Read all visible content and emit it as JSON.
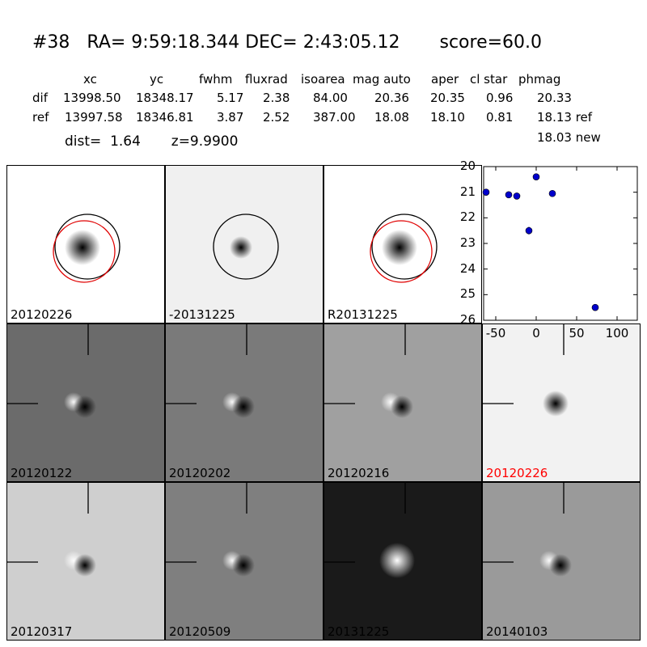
{
  "header": {
    "id": "#38",
    "ra": "RA= 9:59:18.344",
    "dec": "DEC= 2:43:05.12",
    "score": "score=60.0"
  },
  "table": {
    "columns": [
      "xc",
      "yc",
      "fwhm",
      "fluxrad",
      "isoarea",
      "mag auto",
      "aper",
      "cl star",
      "phmag"
    ],
    "dif": [
      "dif",
      "13998.50",
      "18348.17",
      "5.17",
      "2.38",
      "84.00",
      "20.36",
      "20.35",
      "0.96",
      "20.33"
    ],
    "ref": [
      "ref",
      "13997.58",
      "18346.81",
      "3.87",
      "2.52",
      "387.00",
      "18.08",
      "18.10",
      "0.81",
      "18.13 ref"
    ],
    "new_line": "18.03 new"
  },
  "dist_line": "dist=  1.64       z=9.9900",
  "stamps": [
    {
      "label": "20120226",
      "bg": "#ffffff",
      "core": "#000000",
      "red_circle": true
    },
    {
      "label": "-20131225",
      "bg": "#f0f0f0",
      "core": "#000000",
      "red_circle": false
    },
    {
      "label": "R20131225",
      "bg": "#ffffff",
      "core": "#000000",
      "red_circle": true
    }
  ],
  "cutouts": [
    {
      "label": "20120122",
      "bg": "#6b6b6b",
      "red": false
    },
    {
      "label": "20120202",
      "bg": "#7a7a7a",
      "red": false
    },
    {
      "label": "20120216",
      "bg": "#a0a0a0",
      "red": false
    },
    {
      "label": "20120226",
      "bg": "#f2f2f2",
      "red": true
    },
    {
      "label": "20120317",
      "bg": "#cfcfcf",
      "red": false
    },
    {
      "label": "20120509",
      "bg": "#7f7f7f",
      "red": false
    },
    {
      "label": "20131225",
      "bg": "#1a1a1a",
      "red": false
    },
    {
      "label": "20140103",
      "bg": "#9a9a9a",
      "red": false
    }
  ],
  "chart_data": {
    "type": "scatter",
    "xlim": [
      -65,
      125
    ],
    "ylim": [
      26,
      20
    ],
    "x_ticks": [
      -50,
      0,
      50,
      100
    ],
    "y_ticks": [
      20,
      21,
      22,
      23,
      24,
      25,
      26
    ],
    "marker_color": "#0000cc",
    "points": [
      {
        "x": -62,
        "y": 21.0,
        "err": 0.05
      },
      {
        "x": -34,
        "y": 21.1,
        "err": 0.05
      },
      {
        "x": -24,
        "y": 21.15,
        "err": 0.05
      },
      {
        "x": -9,
        "y": 22.5,
        "err": 0.15
      },
      {
        "x": 0,
        "y": 20.4,
        "err": 0.05
      },
      {
        "x": 20,
        "y": 21.05,
        "err": 0.05
      },
      {
        "x": 73,
        "y": 25.5,
        "err": 0.1
      }
    ]
  }
}
